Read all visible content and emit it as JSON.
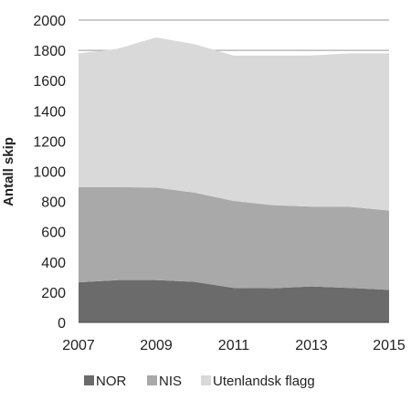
{
  "chart_data": {
    "type": "area",
    "stacked": true,
    "x": [
      2007,
      2008,
      2009,
      2010,
      2011,
      2012,
      2013,
      2014,
      2015
    ],
    "x_tick_labels": [
      "2007",
      "2009",
      "2011",
      "2013",
      "2015"
    ],
    "x_tick_values": [
      2007,
      2009,
      2011,
      2013,
      2015
    ],
    "series": [
      {
        "name": "NOR",
        "values": [
          265,
          280,
          280,
          268,
          228,
          226,
          238,
          228,
          215
        ],
        "color": "#6b6b6b"
      },
      {
        "name": "NIS",
        "values": [
          630,
          615,
          612,
          590,
          575,
          550,
          528,
          536,
          525
        ],
        "color": "#a9a9a9"
      },
      {
        "name": "Utenlandsk flagg",
        "values": [
          885,
          915,
          993,
          982,
          962,
          989,
          1000,
          1016,
          1040
        ],
        "color": "#d9d9d9"
      }
    ],
    "ylabel": "Antall skip",
    "ylim": [
      0,
      2000
    ],
    "y_tick_values": [
      0,
      200,
      400,
      600,
      800,
      1000,
      1200,
      1400,
      1600,
      1800,
      2000
    ],
    "y_tick_labels": [
      "0",
      "200",
      "400",
      "600",
      "800",
      "1000",
      "1200",
      "1400",
      "1600",
      "1800",
      "2000"
    ],
    "grid": "horizontal",
    "legend_position": "bottom"
  }
}
